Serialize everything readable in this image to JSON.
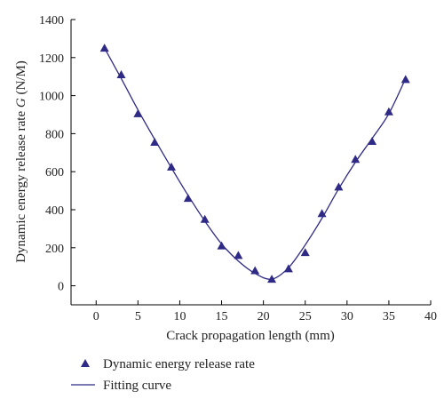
{
  "chart_data": {
    "type": "scatter",
    "xlabel": "Crack propagation length (mm)",
    "ylabel_prefix": "Dynamic energy release rate ",
    "ylabel_symbol": "G",
    "ylabel_suffix": " (N/M)",
    "xlim": [
      -3,
      40
    ],
    "ylim": [
      -100,
      1400
    ],
    "xticks": [
      0,
      5,
      10,
      15,
      20,
      25,
      30,
      35,
      40
    ],
    "yticks": [
      0,
      200,
      400,
      600,
      800,
      1000,
      1200,
      1400
    ],
    "grid": false,
    "legend_position": "bottom-left",
    "series": [
      {
        "name": "Dynamic energy release rate",
        "kind": "markers",
        "marker": "triangle",
        "color": "#2e2a85",
        "points": [
          {
            "x": 1,
            "y": 1250
          },
          {
            "x": 3,
            "y": 1110
          },
          {
            "x": 5,
            "y": 905
          },
          {
            "x": 7,
            "y": 755
          },
          {
            "x": 9,
            "y": 625
          },
          {
            "x": 11,
            "y": 460
          },
          {
            "x": 13,
            "y": 350
          },
          {
            "x": 15,
            "y": 210
          },
          {
            "x": 17,
            "y": 160
          },
          {
            "x": 19,
            "y": 80
          },
          {
            "x": 21,
            "y": 35
          },
          {
            "x": 23,
            "y": 90
          },
          {
            "x": 25,
            "y": 175
          },
          {
            "x": 27,
            "y": 380
          },
          {
            "x": 29,
            "y": 520
          },
          {
            "x": 31,
            "y": 665
          },
          {
            "x": 33,
            "y": 760
          },
          {
            "x": 35,
            "y": 915
          },
          {
            "x": 37,
            "y": 1085
          }
        ]
      },
      {
        "name": "Fitting curve",
        "kind": "line",
        "color": "#2e2a85",
        "points": [
          {
            "x": 1,
            "y": 1250
          },
          {
            "x": 3,
            "y": 1090
          },
          {
            "x": 5,
            "y": 925
          },
          {
            "x": 7,
            "y": 770
          },
          {
            "x": 9,
            "y": 620
          },
          {
            "x": 11,
            "y": 475
          },
          {
            "x": 13,
            "y": 340
          },
          {
            "x": 15,
            "y": 220
          },
          {
            "x": 17,
            "y": 130
          },
          {
            "x": 19,
            "y": 65
          },
          {
            "x": 21,
            "y": 35
          },
          {
            "x": 23,
            "y": 95
          },
          {
            "x": 25,
            "y": 215
          },
          {
            "x": 27,
            "y": 355
          },
          {
            "x": 29,
            "y": 510
          },
          {
            "x": 31,
            "y": 650
          },
          {
            "x": 33,
            "y": 775
          },
          {
            "x": 35,
            "y": 905
          },
          {
            "x": 37,
            "y": 1090
          }
        ]
      }
    ]
  }
}
